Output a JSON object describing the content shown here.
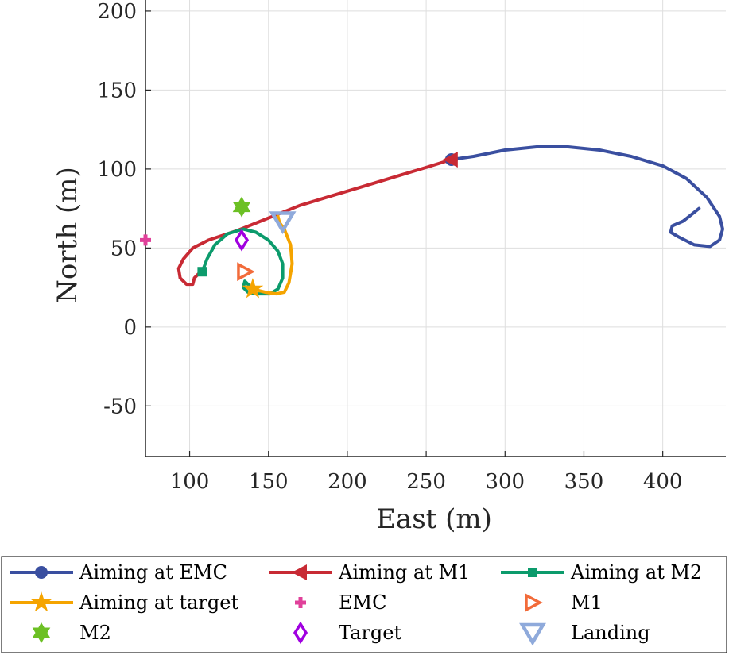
{
  "chart_data": {
    "type": "line",
    "xlabel": "East (m)",
    "ylabel": "North (m)",
    "xlim": [
      72,
      440
    ],
    "ylim": [
      -82,
      207
    ],
    "xticks": [
      100,
      150,
      200,
      250,
      300,
      350,
      400
    ],
    "yticks": [
      -50,
      0,
      50,
      100,
      150,
      200
    ],
    "xtick_labels": [
      "100",
      "150",
      "200",
      "250",
      "300",
      "350",
      "400"
    ],
    "ytick_labels": [
      "-50",
      "0",
      "50",
      "100",
      "150",
      "200"
    ],
    "grid": true,
    "legend_position": "bottom",
    "series": [
      {
        "name": "Aiming at EMC",
        "kind": "line",
        "marker": "circle",
        "color": "#3A4FA0",
        "points": [
          [
            266,
            106
          ],
          [
            280,
            108
          ],
          [
            300,
            112
          ],
          [
            320,
            114
          ],
          [
            340,
            114
          ],
          [
            360,
            112
          ],
          [
            380,
            108
          ],
          [
            400,
            102
          ],
          [
            415,
            94
          ],
          [
            428,
            82
          ],
          [
            436,
            70
          ],
          [
            438,
            62
          ],
          [
            436,
            55
          ],
          [
            430,
            51
          ],
          [
            420,
            52
          ],
          [
            410,
            57
          ],
          [
            405,
            60
          ],
          [
            406,
            64
          ],
          [
            413,
            67
          ],
          [
            418,
            71
          ],
          [
            423,
            75
          ]
        ]
      },
      {
        "name": "Aiming at M1",
        "kind": "line",
        "marker": "triangle-left",
        "color": "#C82A34",
        "points": [
          [
            266,
            106
          ],
          [
            250,
            101
          ],
          [
            230,
            95
          ],
          [
            210,
            89
          ],
          [
            190,
            83
          ],
          [
            170,
            77
          ],
          [
            150,
            69
          ],
          [
            130,
            61
          ],
          [
            112,
            55
          ],
          [
            102,
            50
          ],
          [
            96,
            43
          ],
          [
            93,
            37
          ],
          [
            94,
            31
          ],
          [
            98,
            27
          ],
          [
            102,
            27
          ],
          [
            103,
            31
          ],
          [
            106,
            34
          ]
        ]
      },
      {
        "name": "Aiming at M2",
        "kind": "line",
        "marker": "square",
        "color": "#0C9B6C",
        "points": [
          [
            108,
            35
          ],
          [
            111,
            43
          ],
          [
            116,
            52
          ],
          [
            124,
            59
          ],
          [
            134,
            62
          ],
          [
            142,
            60
          ],
          [
            150,
            55
          ],
          [
            156,
            48
          ],
          [
            159,
            40
          ],
          [
            159,
            31
          ],
          [
            156,
            24
          ],
          [
            151,
            21
          ],
          [
            143,
            21
          ],
          [
            137,
            22
          ],
          [
            134,
            25
          ],
          [
            135,
            29
          ],
          [
            140,
            24
          ]
        ]
      },
      {
        "name": "Aiming at target",
        "kind": "line",
        "marker": "star",
        "color": "#F5A400",
        "points": [
          [
            140,
            24
          ],
          [
            148,
            22
          ],
          [
            155,
            21
          ],
          [
            160,
            22
          ],
          [
            163,
            28
          ],
          [
            165,
            40
          ],
          [
            164,
            52
          ],
          [
            160,
            62
          ],
          [
            157,
            66
          ],
          [
            156,
            70
          ]
        ]
      },
      {
        "name": "EMC",
        "kind": "point",
        "marker": "plus",
        "color": "#E0409A",
        "points": [
          [
            72,
            55
          ]
        ]
      },
      {
        "name": "M1",
        "kind": "point",
        "marker": "triangle-right",
        "color": "#F26B3A",
        "points": [
          [
            135,
            35
          ]
        ]
      },
      {
        "name": "M2",
        "kind": "point",
        "marker": "hexagram",
        "color": "#6CC024",
        "points": [
          [
            133,
            76
          ]
        ]
      },
      {
        "name": "Target",
        "kind": "point",
        "marker": "diamond",
        "color": "#A000E0",
        "points": [
          [
            133,
            55
          ]
        ]
      },
      {
        "name": "Landing",
        "kind": "point",
        "marker": "triangle-down",
        "color": "#8FAADB",
        "points": [
          [
            159,
            67
          ]
        ]
      }
    ]
  },
  "legend": {
    "rows": [
      [
        "Aiming at EMC",
        "Aiming at M1",
        "Aiming at M2"
      ],
      [
        "Aiming at target",
        "EMC",
        "M1"
      ],
      [
        "M2",
        "Target",
        "Landing"
      ]
    ]
  }
}
